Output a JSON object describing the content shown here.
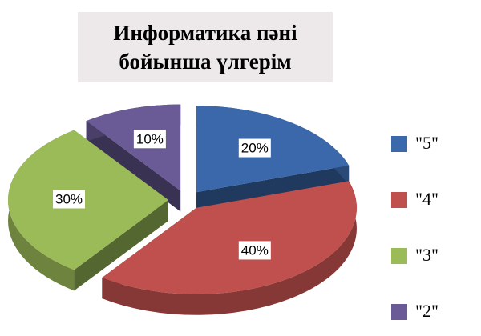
{
  "chart_data": {
    "type": "pie",
    "title": "Информатика пәні бойынша үлгерім",
    "categories": [
      "\"5\"",
      "\"4\"",
      "\"3\"",
      "\"2\""
    ],
    "values": [
      20,
      40,
      30,
      10
    ],
    "value_labels": [
      "20%",
      "40%",
      "30%",
      "10%"
    ],
    "colors": [
      "#3a68aa",
      "#c0504d",
      "#9bbb59",
      "#6a5a96"
    ],
    "legend": "right"
  }
}
